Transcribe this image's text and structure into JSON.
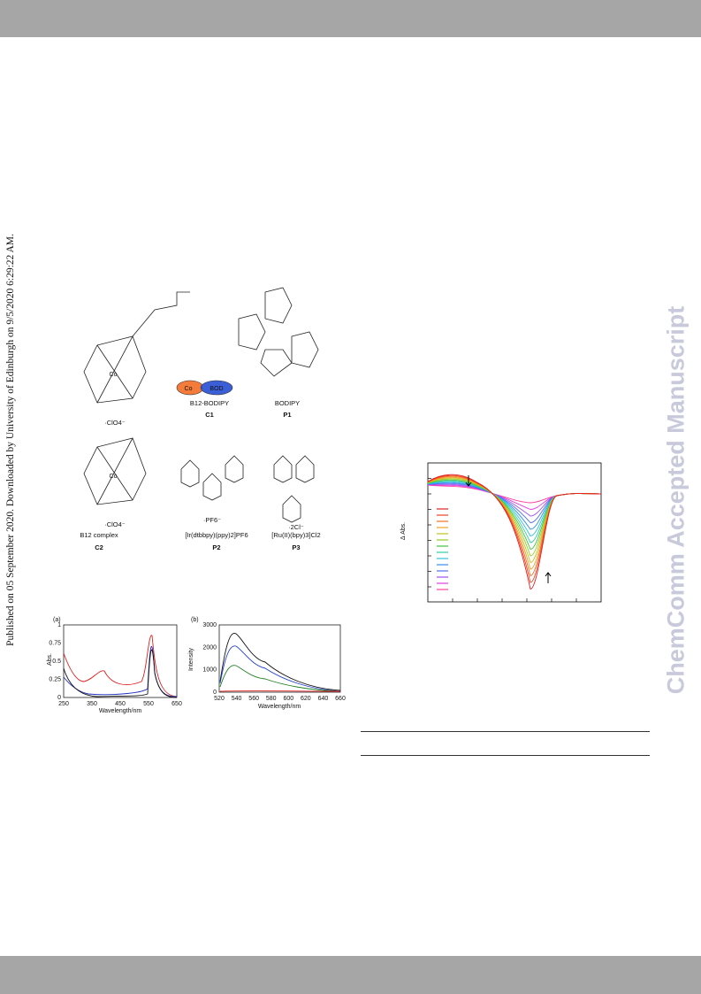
{
  "side_note": "Published on 05 September 2020. Downloaded by University of Edinburgh on 9/5/2020 6:29:22 AM.",
  "watermark": "ChemComm Accepted Manuscript",
  "scheme": {
    "c1_name": "B12-BODIPY",
    "c1_id": "C1",
    "p1_name": "BODIPY",
    "p1_id": "P1",
    "c2_name": "B12 complex",
    "c2_id": "C2",
    "p2_name": "[Ir(dtbbpy)(ppy)2]PF6",
    "p2_id": "P2",
    "p3_name": "[Ru(II)(bpy)3]Cl2",
    "p3_id": "P3",
    "cobalt": "Co",
    "bod": "BOD",
    "perchlorate": "·ClO4⁻",
    "hexafluorophosphate": "·PF6⁻",
    "chloride": "·2Cl⁻"
  },
  "figure_a": {
    "panel": "(a)",
    "ylabel": "Abs.",
    "xlabel": "Wavelength/nm",
    "yticks": [
      "1",
      "0.75",
      "0.5",
      "0.25",
      "0"
    ],
    "xticks": [
      "250",
      "350",
      "450",
      "550",
      "650"
    ]
  },
  "figure_b": {
    "panel": "(b)",
    "ylabel": "Intensity",
    "xlabel": "Wavelength/nm",
    "yticks": [
      "3000",
      "2000",
      "1000",
      "0"
    ],
    "xticks": [
      "520",
      "540",
      "560",
      "580",
      "600",
      "620",
      "640",
      "660"
    ]
  },
  "figure_c": {
    "ylabel": "Δ Abs."
  }
}
